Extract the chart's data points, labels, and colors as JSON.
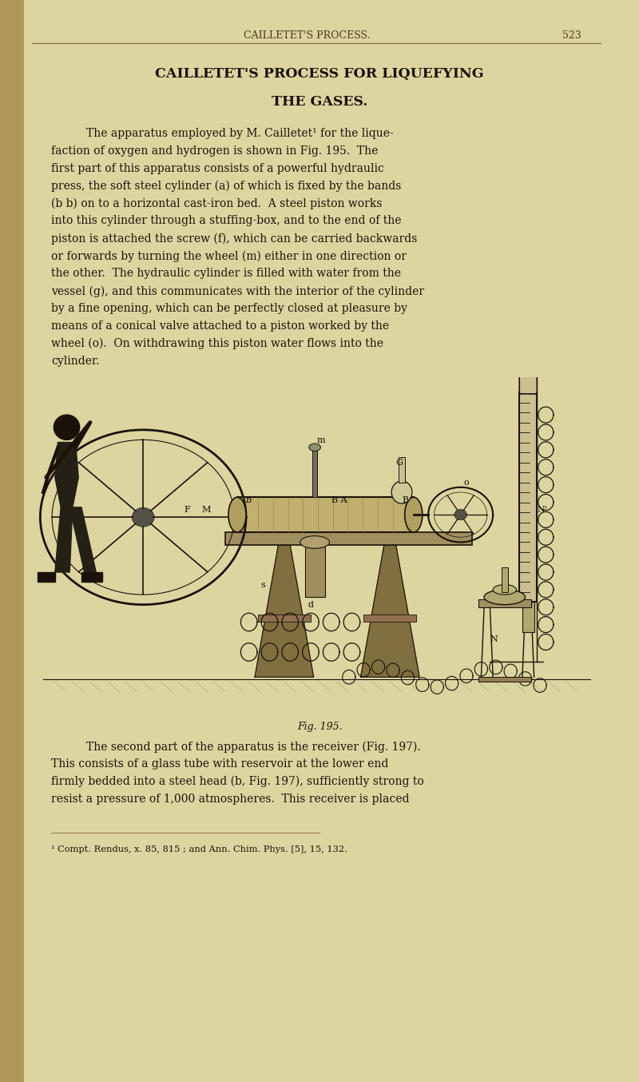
{
  "background_color": "#ddd5a0",
  "header_text": "CAILLETET'S PROCESS.",
  "page_number": "523",
  "title_line1": "CAILLETET'S PROCESS FOR LIQUEFYING",
  "title_line2": "THE GASES.",
  "body1_lines": [
    "The apparatus employed by M. Cailletet¹ for the lique-",
    "faction of oxygen and hydrogen is shown in Fig. 195.  The",
    "first part of this apparatus consists of a powerful hydraulic",
    "press, the soft steel cylinder (a) of which is fixed by the bands",
    "(b b) on to a horizontal cast-iron bed.  A steel piston works",
    "into this cylinder through a stuffing-box, and to the end of the",
    "piston is attached the screw (f), which can be carried backwards",
    "or forwards by turning the wheel (m) either in one direction or",
    "the other.  The hydraulic cylinder is filled with water from the",
    "vessel (g), and this communicates with the interior of the cylinder",
    "by a fine opening, which can be perfectly closed at pleasure by",
    "means of a conical valve attached to a piston worked by the",
    "wheel (o).  On withdrawing this piston water flows into the",
    "cylinder."
  ],
  "fig_caption": "Fig. 195.",
  "body2_lines": [
    "The second part of the apparatus is the receiver (Fig. 197).",
    "This consists of a glass tube with reservoir at the lower end",
    "firmly bedded into a steel head (b, Fig. 197), sufficiently strong to",
    "resist a pressure of 1,000 atmospheres.  This receiver is placed"
  ],
  "footnote": "¹ Compt. Rendus, x. 85, 815 ; and Ann. Chim. Phys. [5], 15, 132.",
  "text_color": "#1a1208",
  "header_color": "#4a3a18",
  "line_color": "#7a6830",
  "ink_color": "#1c1810",
  "fig_ink": "#1a1208"
}
